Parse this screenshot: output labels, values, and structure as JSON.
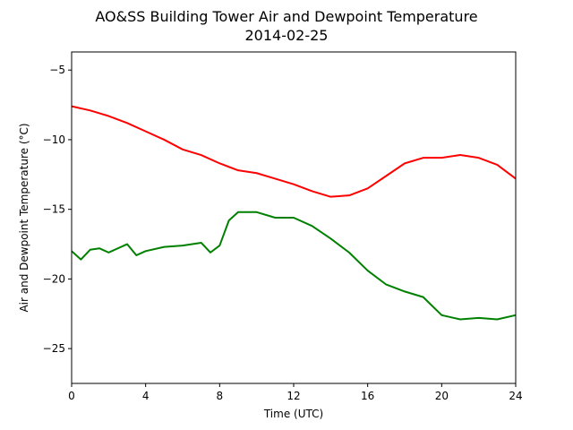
{
  "chart_data": {
    "type": "line",
    "title": "AO&SS Building Tower Air and Dewpoint Temperature",
    "subtitle": "2014-02-25",
    "xlabel": "Time (UTC)",
    "ylabel": "Air and Dewpoint Temperature (°C)",
    "xlim": [
      0,
      24
    ],
    "ylim": [
      -27.5,
      -3.7
    ],
    "xticks": [
      0,
      4,
      8,
      12,
      16,
      20,
      24
    ],
    "yticks": [
      -25,
      -20,
      -15,
      -10,
      -5
    ],
    "ytick_labels": [
      "−25",
      "−20",
      "−15",
      "−10",
      "−5"
    ],
    "grid": false,
    "series": [
      {
        "color": "#ff0000",
        "x": [
          0,
          1,
          2,
          3,
          4,
          5,
          6,
          7,
          8,
          9,
          10,
          11,
          12,
          13,
          14,
          15,
          16,
          17,
          18,
          19,
          20,
          21,
          22,
          23,
          24
        ],
        "y": [
          -7.6,
          -7.9,
          -8.3,
          -8.8,
          -9.4,
          -10.0,
          -10.7,
          -11.1,
          -11.7,
          -12.2,
          -12.4,
          -12.8,
          -13.2,
          -13.7,
          -14.1,
          -14.0,
          -13.5,
          -12.6,
          -11.7,
          -11.3,
          -11.3,
          -11.1,
          -11.3,
          -11.8,
          -12.8
        ]
      },
      {
        "color": "#008000",
        "x": [
          0,
          0.5,
          1,
          1.5,
          2,
          3,
          3.5,
          4,
          5,
          6,
          7,
          7.5,
          8,
          8.5,
          9,
          10,
          11,
          12,
          13,
          14,
          15,
          16,
          17,
          18,
          19,
          20,
          21,
          22,
          23,
          24
        ],
        "y": [
          -18.0,
          -18.6,
          -17.9,
          -17.8,
          -18.1,
          -17.5,
          -18.3,
          -18.0,
          -17.7,
          -17.6,
          -17.4,
          -18.1,
          -17.6,
          -15.8,
          -15.2,
          -15.2,
          -15.6,
          -15.6,
          -16.2,
          -17.1,
          -18.1,
          -19.4,
          -20.4,
          -20.9,
          -21.3,
          -22.6,
          -22.9,
          -22.8,
          -22.9,
          -22.6
        ]
      }
    ]
  }
}
